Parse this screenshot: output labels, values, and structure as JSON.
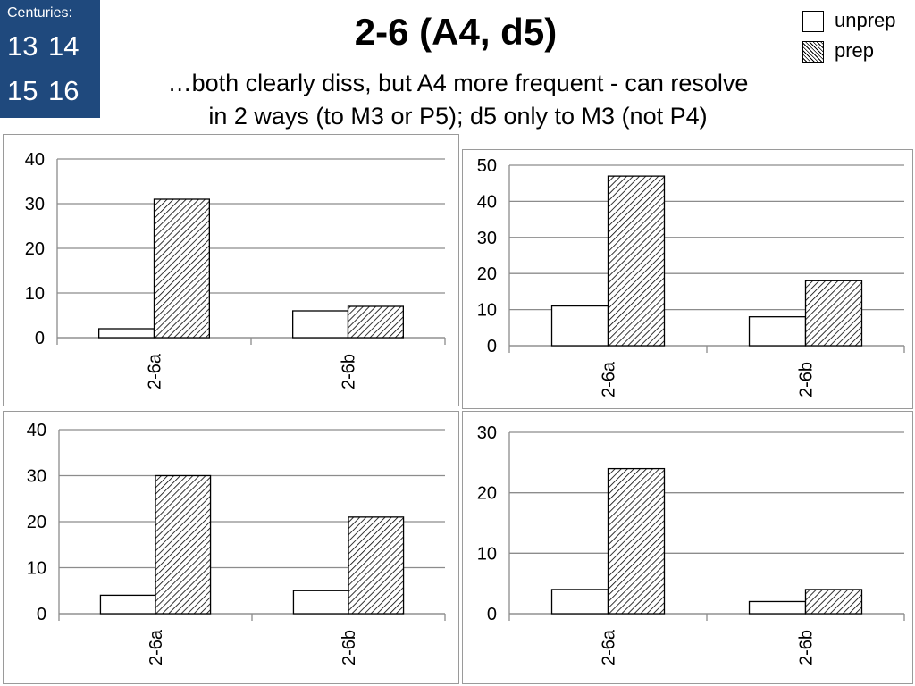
{
  "centuries": {
    "title": "Centuries:",
    "rows": [
      [
        "13",
        "14"
      ],
      [
        "15",
        "16"
      ]
    ]
  },
  "header": {
    "title": "2-6 (A4, d5)",
    "subtitle_line1": "…both clearly diss, but A4 more frequent - can resolve",
    "subtitle_line2": "in 2 ways (to M3 or P5); d5 only to M3 (not P4)"
  },
  "legend": {
    "items": [
      {
        "label": "unprep",
        "pattern": "solid-white"
      },
      {
        "label": "prep",
        "pattern": "diagonal-hatch"
      }
    ]
  },
  "chart_data": [
    {
      "type": "bar",
      "categories": [
        "2-6a",
        "2-6b"
      ],
      "series": [
        {
          "name": "unprep",
          "values": [
            2,
            6
          ]
        },
        {
          "name": "prep",
          "values": [
            31,
            7
          ]
        }
      ],
      "yticks": [
        0,
        10,
        20,
        30,
        40
      ],
      "ylim": [
        0,
        40
      ],
      "grid": true,
      "title": "",
      "xlabel": "",
      "ylabel": ""
    },
    {
      "type": "bar",
      "categories": [
        "2-6a",
        "2-6b"
      ],
      "series": [
        {
          "name": "unprep",
          "values": [
            11,
            8
          ]
        },
        {
          "name": "prep",
          "values": [
            47,
            18
          ]
        }
      ],
      "yticks": [
        0,
        10,
        20,
        30,
        40,
        50
      ],
      "ylim": [
        0,
        50
      ],
      "grid": true,
      "title": "",
      "xlabel": "",
      "ylabel": ""
    },
    {
      "type": "bar",
      "categories": [
        "2-6a",
        "2-6b"
      ],
      "series": [
        {
          "name": "unprep",
          "values": [
            4,
            5
          ]
        },
        {
          "name": "prep",
          "values": [
            30,
            21
          ]
        }
      ],
      "yticks": [
        0,
        10,
        20,
        30,
        40
      ],
      "ylim": [
        0,
        40
      ],
      "grid": true,
      "title": "",
      "xlabel": "",
      "ylabel": ""
    },
    {
      "type": "bar",
      "categories": [
        "2-6a",
        "2-6b"
      ],
      "series": [
        {
          "name": "unprep",
          "values": [
            4,
            2
          ]
        },
        {
          "name": "prep",
          "values": [
            24,
            4
          ]
        }
      ],
      "yticks": [
        0,
        10,
        20,
        30
      ],
      "ylim": [
        0,
        30
      ],
      "grid": true,
      "title": "",
      "xlabel": "",
      "ylabel": ""
    }
  ]
}
